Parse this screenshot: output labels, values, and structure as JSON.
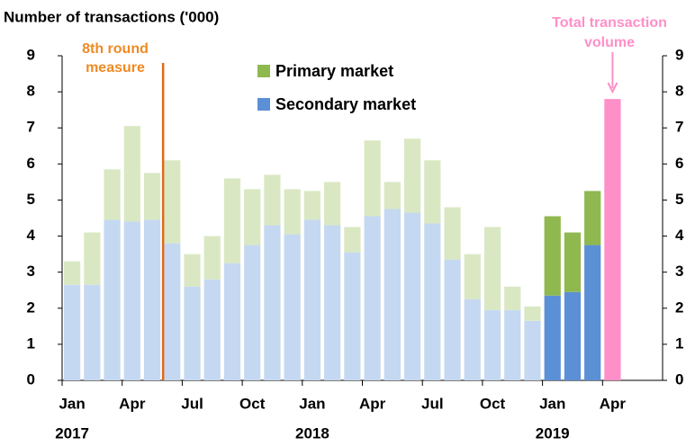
{
  "chart_data": {
    "type": "bar",
    "stacked": true,
    "title": "Number of transactions ('000)",
    "categories": [
      "Jan",
      null,
      null,
      "Apr",
      null,
      null,
      "Jul",
      null,
      null,
      "Oct",
      null,
      null,
      "Jan",
      null,
      null,
      "Apr",
      null,
      null,
      "Jul",
      null,
      null,
      "Oct",
      null,
      null,
      "Jan",
      null,
      null,
      "Apr"
    ],
    "years": [
      "2017",
      null,
      null,
      null,
      null,
      null,
      null,
      null,
      null,
      null,
      null,
      null,
      "2018",
      null,
      null,
      null,
      null,
      null,
      null,
      null,
      null,
      null,
      null,
      null,
      "2019",
      null,
      null,
      null
    ],
    "series": [
      {
        "name": "Secondary market",
        "color": "#5b8fd6",
        "colors": [
          "#c5d8f1",
          "#c5d8f1",
          "#c5d8f1",
          "#c5d8f1",
          "#c5d8f1",
          "#c5d8f1",
          "#c5d8f1",
          "#c5d8f1",
          "#c5d8f1",
          "#c5d8f1",
          "#c5d8f1",
          "#c5d8f1",
          "#c5d8f1",
          "#c5d8f1",
          "#c5d8f1",
          "#c5d8f1",
          "#c5d8f1",
          "#c5d8f1",
          "#c5d8f1",
          "#c5d8f1",
          "#c5d8f1",
          "#c5d8f1",
          "#c5d8f1",
          "#c5d8f1",
          "#5b8fd6",
          "#5b8fd6",
          "#5b8fd6",
          "#5b8fd6"
        ],
        "values": [
          2.65,
          2.65,
          4.45,
          4.4,
          4.45,
          3.8,
          2.6,
          2.8,
          3.25,
          3.75,
          4.3,
          4.05,
          4.45,
          4.3,
          3.55,
          4.55,
          4.75,
          4.65,
          4.35,
          3.35,
          2.25,
          1.95,
          1.95,
          1.65,
          2.35,
          2.45,
          3.75,
          null
        ]
      },
      {
        "name": "Primary market",
        "color": "#8fb84f",
        "colors": [
          "#d9e8c3",
          "#d9e8c3",
          "#d9e8c3",
          "#d9e8c3",
          "#d9e8c3",
          "#d9e8c3",
          "#d9e8c3",
          "#d9e8c3",
          "#d9e8c3",
          "#d9e8c3",
          "#d9e8c3",
          "#d9e8c3",
          "#d9e8c3",
          "#d9e8c3",
          "#d9e8c3",
          "#d9e8c3",
          "#d9e8c3",
          "#d9e8c3",
          "#d9e8c3",
          "#d9e8c3",
          "#d9e8c3",
          "#d9e8c3",
          "#d9e8c3",
          "#d9e8c3",
          "#8fb84f",
          "#8fb84f",
          "#8fb84f",
          "#8fb84f"
        ],
        "values": [
          0.65,
          1.45,
          1.4,
          2.65,
          1.3,
          2.3,
          0.9,
          1.2,
          2.35,
          1.55,
          1.4,
          1.25,
          0.8,
          1.2,
          0.7,
          2.1,
          0.75,
          2.05,
          1.75,
          1.45,
          1.25,
          2.3,
          0.65,
          0.4,
          2.2,
          1.65,
          1.5,
          null
        ]
      },
      {
        "color": "#ff8fc8",
        "values": [
          null,
          null,
          null,
          null,
          null,
          null,
          null,
          null,
          null,
          null,
          null,
          null,
          null,
          null,
          null,
          null,
          null,
          null,
          null,
          null,
          null,
          null,
          null,
          null,
          null,
          null,
          null,
          7.8
        ]
      }
    ],
    "annotations": [
      {
        "text": [
          "8th round",
          "measure"
        ],
        "color": "#f08a24",
        "line_color": "#e0691a"
      },
      {
        "text": [
          "Total transaction",
          "volume"
        ],
        "color": "#ff8fc8"
      }
    ],
    "ylim": [
      0,
      9
    ],
    "yticks": [
      0,
      1,
      2,
      3,
      4,
      5,
      6,
      7,
      8,
      9
    ],
    "y2lim": [
      0,
      9
    ],
    "y2ticks": [
      0,
      1,
      2,
      3,
      4,
      5,
      6,
      7,
      8,
      9
    ]
  }
}
